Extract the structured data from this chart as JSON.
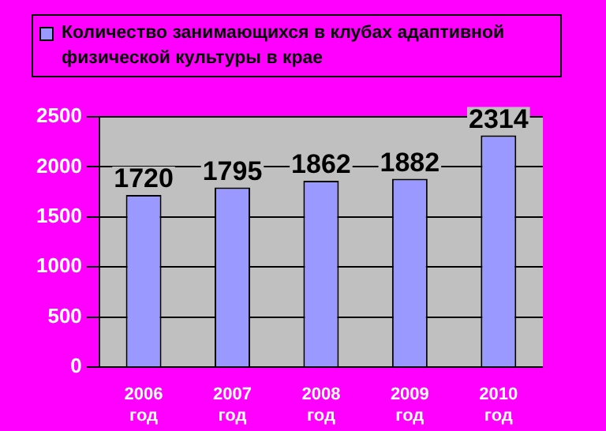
{
  "chart_data": {
    "type": "bar",
    "categories": [
      "2006 год",
      "2007 год",
      "2008 год",
      "2009 год",
      "2010 год"
    ],
    "series": [
      {
        "name": "Количество занимающихся в клубах адаптивной физической культуры в крае",
        "color": "#9999ff",
        "values": [
          1720,
          1795,
          1862,
          1882,
          2314
        ]
      }
    ],
    "ylim": [
      0,
      2500
    ],
    "yticks": [
      0,
      500,
      1000,
      1500,
      2000,
      2500
    ],
    "grid": "y",
    "legend": "top",
    "data_labels": true
  }
}
